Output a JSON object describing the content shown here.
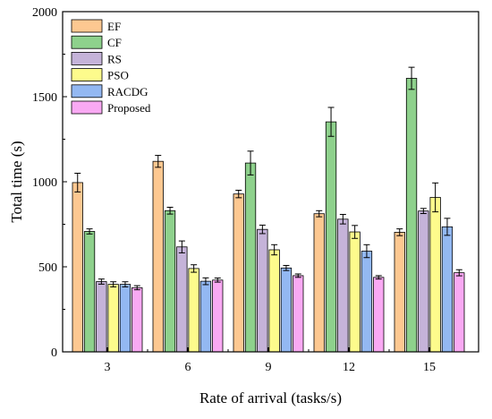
{
  "chart_data": {
    "type": "bar",
    "title": "",
    "xlabel": "Rate of arrival (tasks/s)",
    "ylabel": "Total time (s)",
    "categories": [
      "3",
      "6",
      "9",
      "12",
      "15"
    ],
    "ylim": [
      0,
      2000
    ],
    "yticks": [
      0,
      500,
      1000,
      1500,
      2000
    ],
    "error_bars": true,
    "legend_position": "top-left",
    "series": [
      {
        "name": "EF",
        "color": "#FDC891",
        "values": [
          995,
          1120,
          928,
          812,
          703
        ],
        "errors": [
          55,
          35,
          22,
          18,
          20
        ]
      },
      {
        "name": "CF",
        "color": "#8ED18C",
        "values": [
          708,
          830,
          1110,
          1352,
          1608
        ],
        "errors": [
          15,
          20,
          70,
          85,
          65
        ]
      },
      {
        "name": "RS",
        "color": "#C5B3D9",
        "values": [
          413,
          617,
          720,
          780,
          828
        ],
        "errors": [
          15,
          35,
          25,
          28,
          15
        ]
      },
      {
        "name": "PSO",
        "color": "#FDFB8C",
        "values": [
          397,
          490,
          600,
          705,
          908
        ],
        "errors": [
          15,
          22,
          30,
          38,
          85
        ]
      },
      {
        "name": "RACDG",
        "color": "#93B8F2",
        "values": [
          397,
          415,
          493,
          592,
          735
        ],
        "errors": [
          15,
          20,
          15,
          38,
          50
        ]
      },
      {
        "name": "Proposed",
        "color": "#F9A9F3",
        "values": [
          377,
          422,
          448,
          438,
          465
        ],
        "errors": [
          12,
          12,
          10,
          10,
          18
        ]
      }
    ]
  }
}
